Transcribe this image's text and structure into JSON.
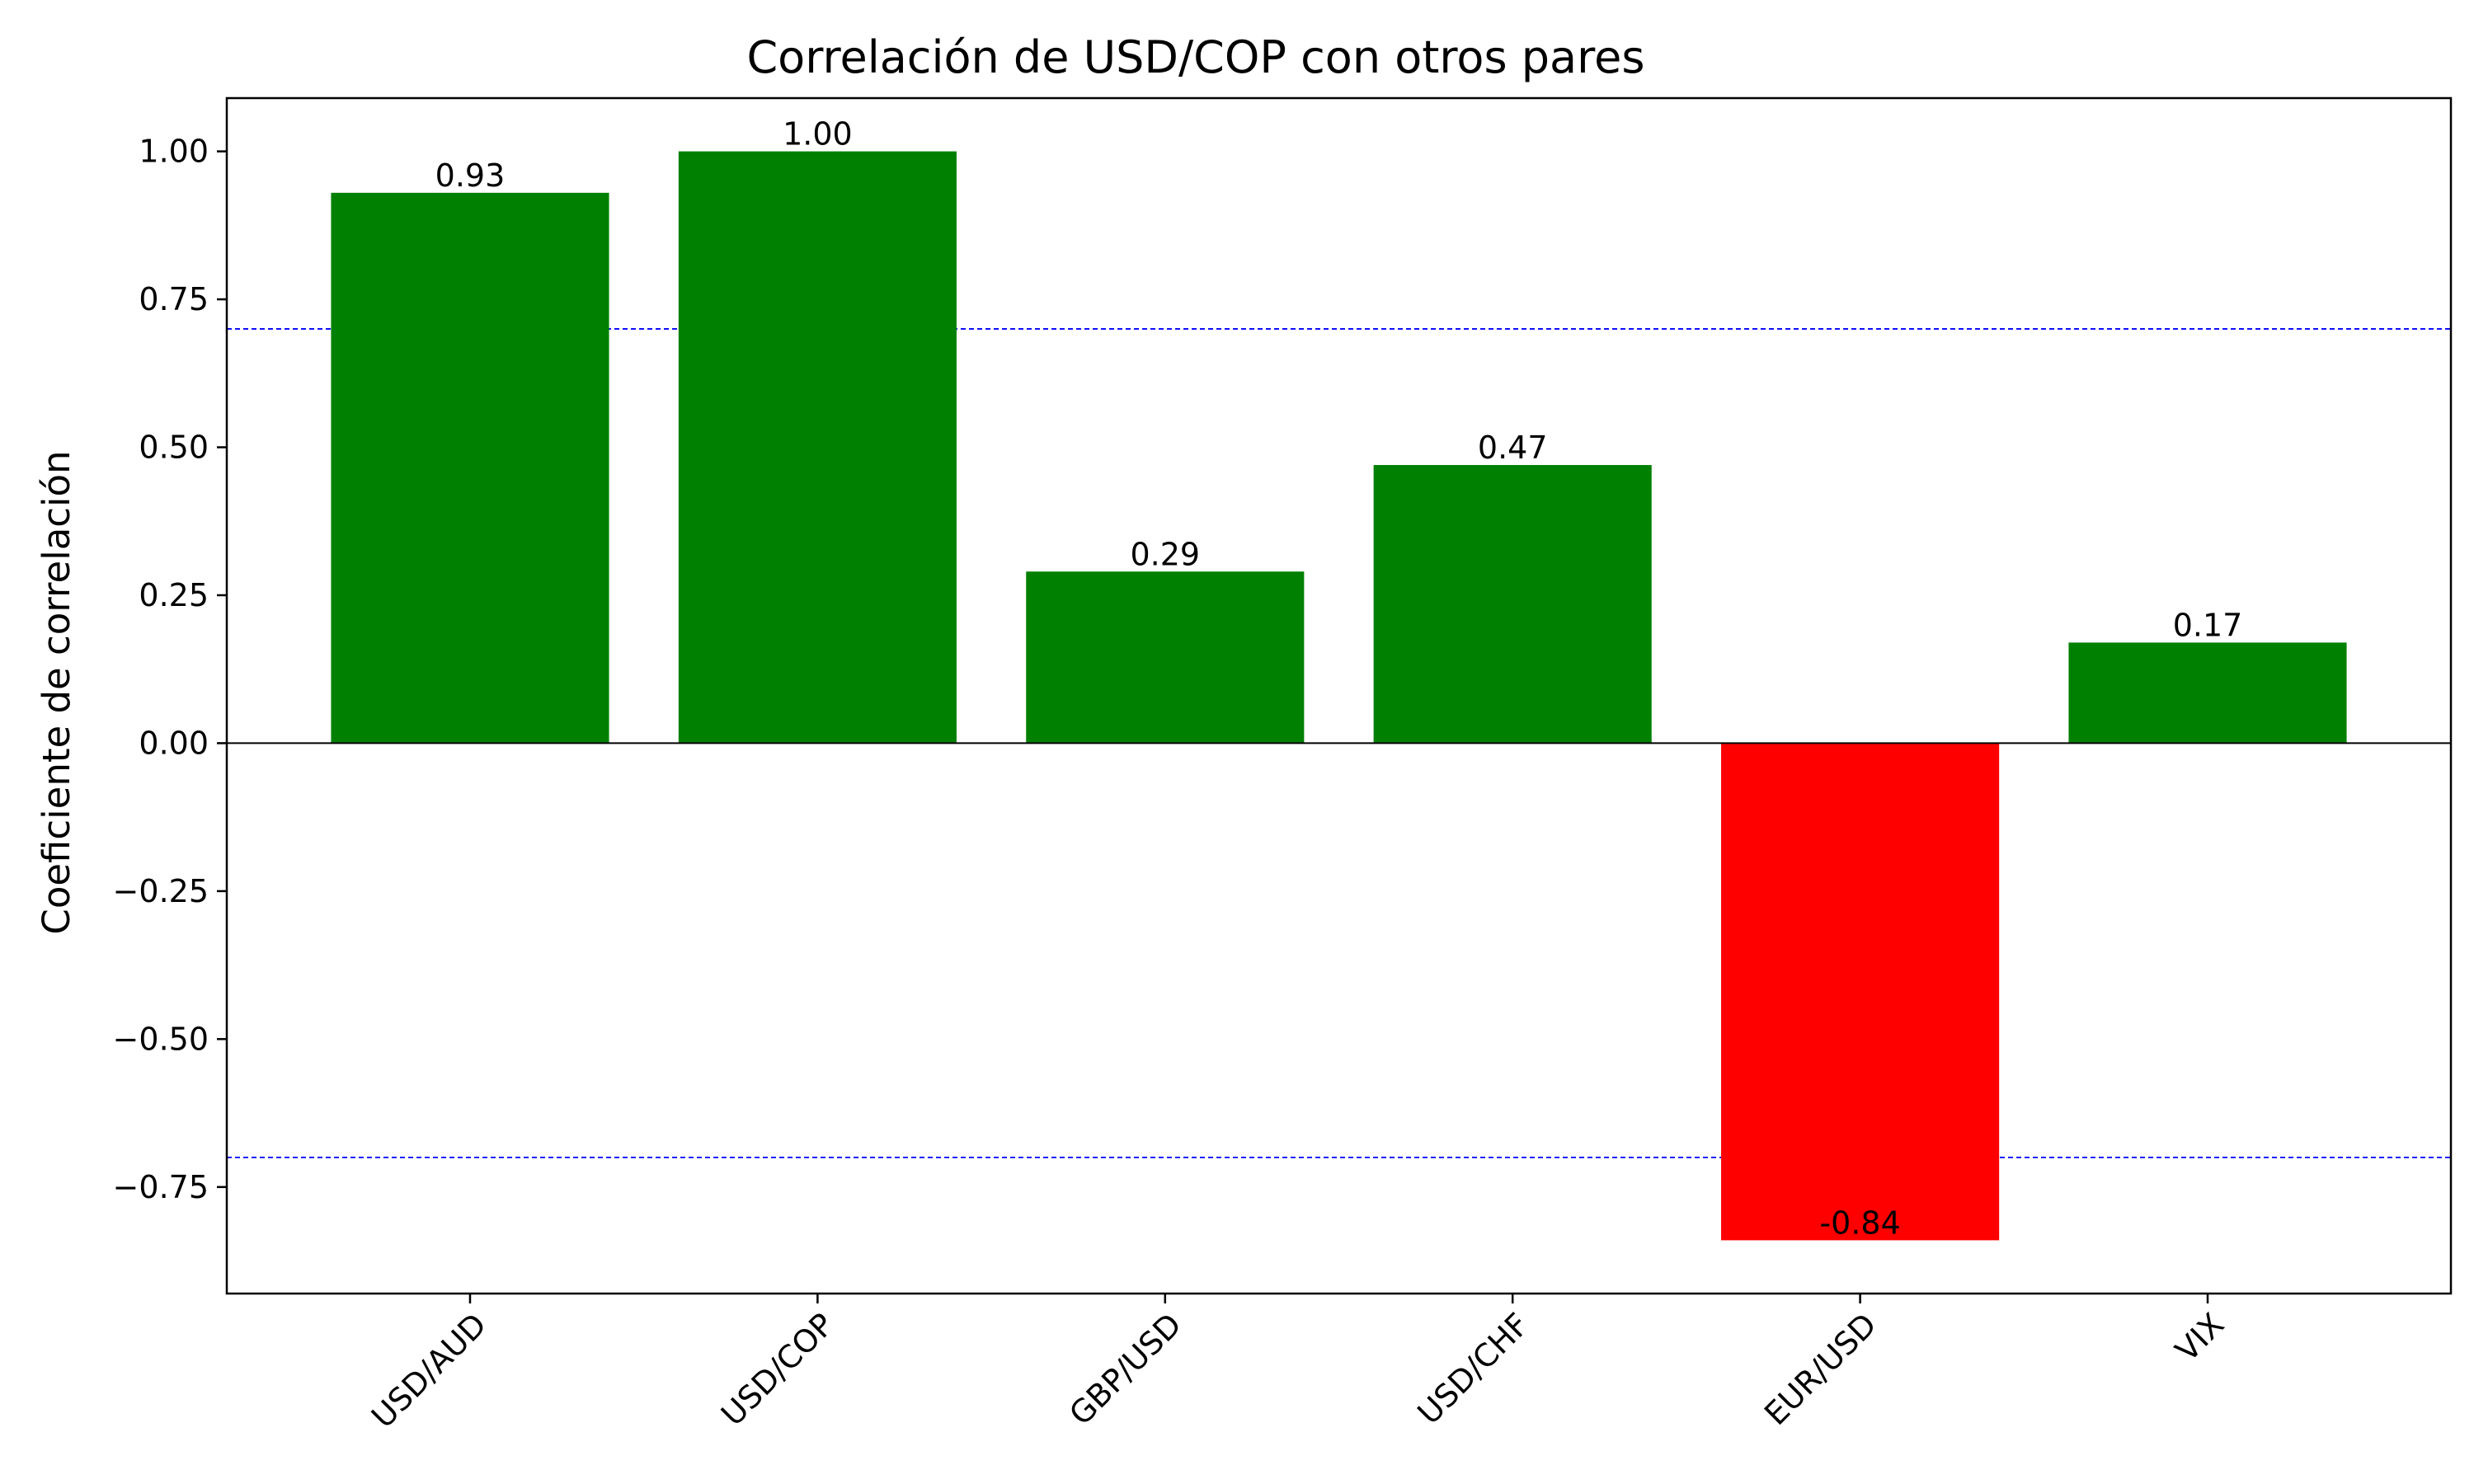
{
  "chart_data": {
    "type": "bar",
    "title": "Correlación de USD/COP con otros pares",
    "ylabel": "Coeficiente de correlación",
    "xlabel": "",
    "categories": [
      "USD/AUD",
      "USD/COP",
      "GBP/USD",
      "USD/CHF",
      "EUR/USD",
      "VIX"
    ],
    "values": [
      0.93,
      1.0,
      0.29,
      0.47,
      -0.84,
      0.17
    ],
    "value_labels": [
      "0.93",
      "1.00",
      "0.29",
      "0.47",
      "-0.84",
      "0.17"
    ],
    "ylim": [
      -0.93,
      1.09
    ],
    "yticks": [
      1.0,
      0.75,
      0.5,
      0.25,
      0.0,
      -0.25,
      -0.5,
      -0.75
    ],
    "ytick_labels": [
      "1.00",
      "0.75",
      "0.50",
      "0.25",
      "0.00",
      "−0.25",
      "−0.50",
      "−0.75"
    ],
    "reference_lines": [
      0.7,
      -0.7
    ],
    "colors": {
      "positive": "#008000",
      "negative": "#ff0000",
      "reference": "#0000ff",
      "zero_line": "#000000"
    },
    "grid": false,
    "legend": "none"
  }
}
